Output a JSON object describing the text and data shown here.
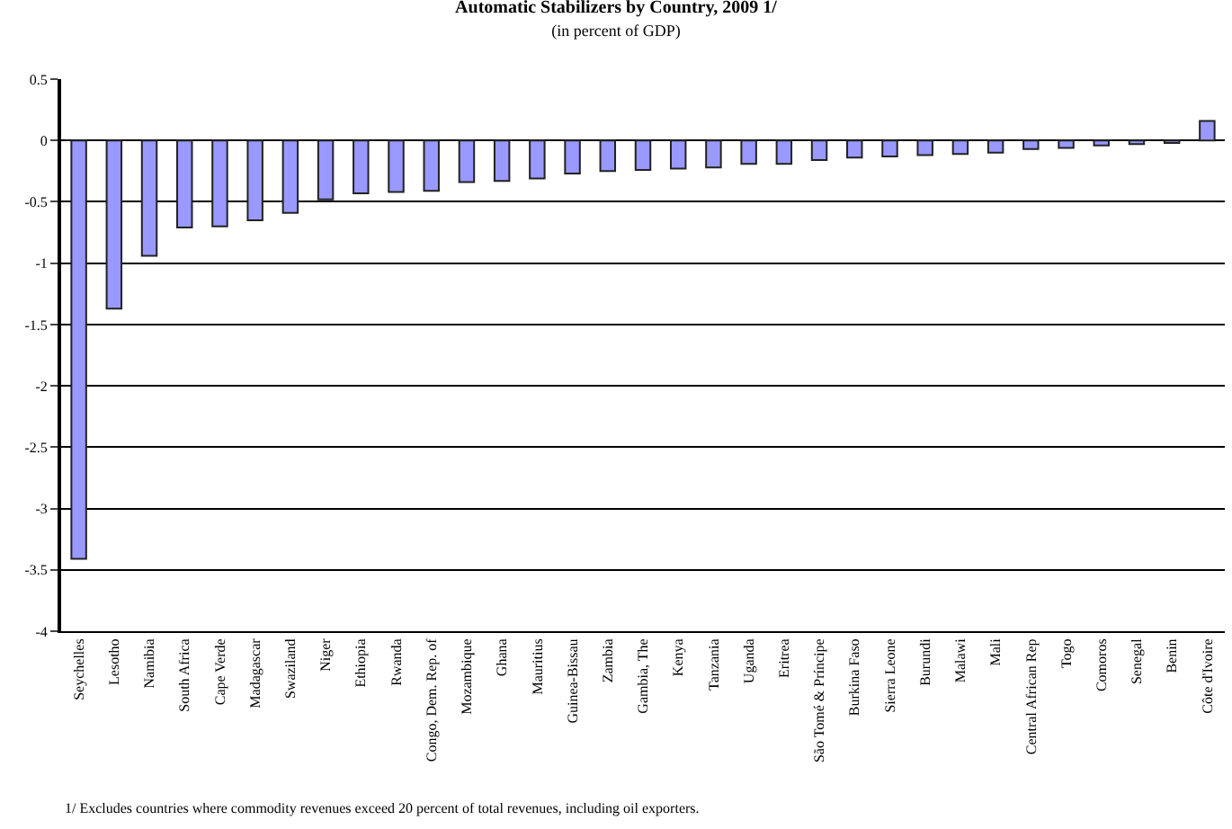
{
  "chart_data": {
    "type": "bar",
    "title": "Automatic Stabilizers by Country, 2009 1/",
    "subtitle": "(in percent of GDP)",
    "categories": [
      "Seychelles",
      "Lesotho",
      "Namibia",
      "South Africa",
      "Cape Verde",
      "Madagascar",
      "Swaziland",
      "Niger",
      "Ethiopia",
      "Rwanda",
      "Congo, Dem. Rep. of",
      "Mozambique",
      "Ghana",
      "Mauritius",
      "Guinea-Bissau",
      "Zambia",
      "Gambia, The",
      "Kenya",
      "Tanzania",
      "Uganda",
      "Eritrea",
      "São Tomé & Príncipe",
      "Burkina Faso",
      "Sierra Leone",
      "Burundi",
      "Malawi",
      "Mali",
      "Central African Rep",
      "Togo",
      "Comoros",
      "Senegal",
      "Benin",
      "Côte d'Ivoire"
    ],
    "values": [
      -3.41,
      -1.37,
      -0.94,
      -0.71,
      -0.7,
      -0.65,
      -0.59,
      -0.48,
      -0.43,
      -0.42,
      -0.41,
      -0.34,
      -0.33,
      -0.31,
      -0.27,
      -0.25,
      -0.24,
      -0.23,
      -0.22,
      -0.19,
      -0.19,
      -0.16,
      -0.14,
      -0.13,
      -0.12,
      -0.11,
      -0.1,
      -0.07,
      -0.06,
      -0.04,
      -0.03,
      -0.02,
      0.16
    ],
    "color": "#9999ff",
    "ylim": [
      -4,
      0.5
    ],
    "yticks": [
      -4,
      -3.5,
      -3,
      -2.5,
      -2,
      -1.5,
      -1,
      -0.5,
      0,
      0.5
    ],
    "grid": "y",
    "legend": false,
    "annotations": [
      "1/ Excludes countries where commodity revenues exceed 20 percent of total revenues, including oil exporters."
    ]
  }
}
